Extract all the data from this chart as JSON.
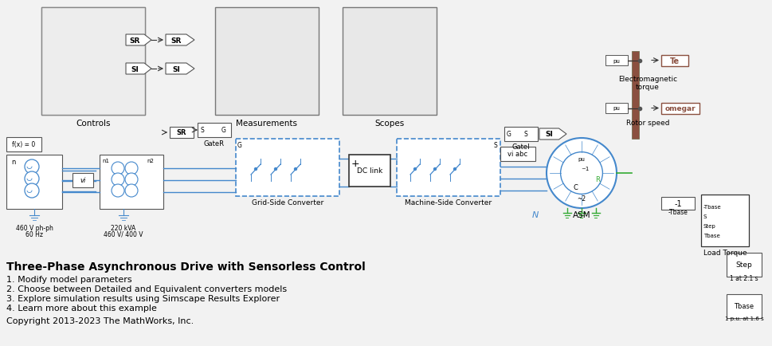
{
  "bg_color": "#f2f2f2",
  "title": "Three-Phase Asynchronous Drive with Sensorless Control",
  "bullets": [
    "1. Modify model parameters",
    "2. Choose between Detailed and Equivalent converters models",
    "3. Explore simulation results using Simscape Results Explorer",
    "4. Learn more about this example"
  ],
  "copyright": "Copyright 2013-2023 The MathWorks, Inc.",
  "title_fontsize": 10,
  "bullet_fontsize": 8,
  "copyright_fontsize": 8,
  "blue": "#4488cc",
  "dark_blue": "#2255aa",
  "green": "#33aa33",
  "brown": "#8B5040",
  "gray": "#888888",
  "dark": "#333333"
}
